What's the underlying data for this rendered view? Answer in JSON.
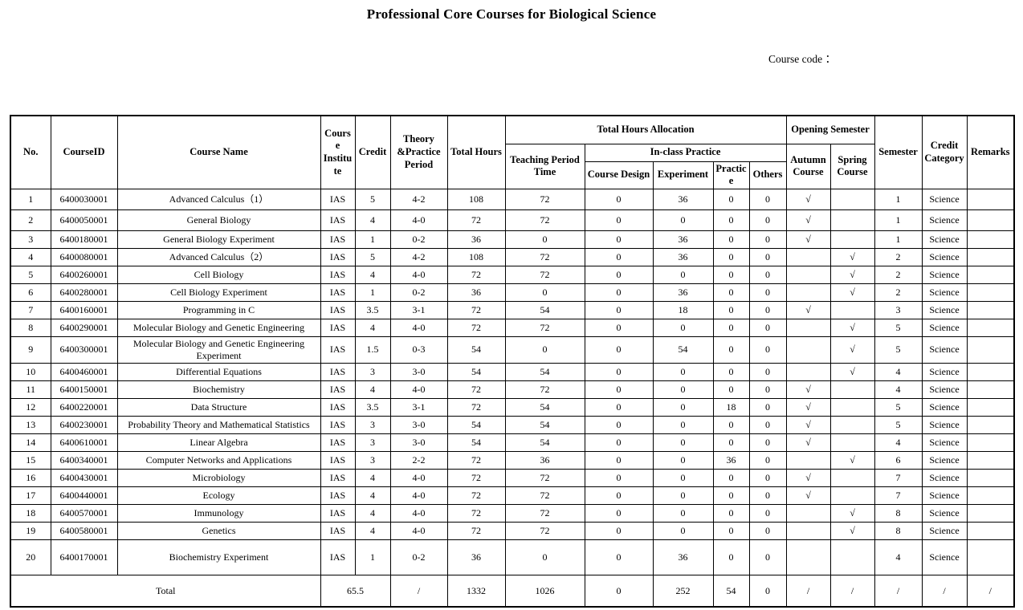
{
  "page": {
    "title": "Professional Core Courses for Biological Science",
    "course_code_label": "Course code ："
  },
  "table": {
    "headers": {
      "no": "No.",
      "course_id": "CourseID",
      "course_name": "Course Name",
      "course_institute": "Course Institute",
      "credit": "Credit",
      "theory_practice": "Theory &Practice Period",
      "total_hours": "Total Hours",
      "total_hours_allocation": "Total Hours Allocation",
      "teaching_period_time": "Teaching Period Time",
      "in_class_practice": "In-class Practice",
      "course_design": "Course Design",
      "experiment": "Experiment",
      "practice": "Practice",
      "others": "Others",
      "opening_semester": "Opening Semester",
      "autumn_course": "Autumn Course",
      "spring_course": "Spring Course",
      "semester": "Semester",
      "credit_category": "Credit Category",
      "remarks": "Remarks"
    },
    "rows": [
      {
        "no": "1",
        "course_id": "6400030001",
        "course_name": "Advanced Calculus（1）",
        "institute": "IAS",
        "credit": "5",
        "theory_practice": "4-2",
        "total_hours": "108",
        "teaching": "72",
        "course_design": "0",
        "experiment": "36",
        "practice": "0",
        "others": "0",
        "autumn": "√",
        "spring": "",
        "semester": "1",
        "category": "Science",
        "remarks": ""
      },
      {
        "no": "2",
        "course_id": "6400050001",
        "course_name": "General Biology",
        "institute": "IAS",
        "credit": "4",
        "theory_practice": "4-0",
        "total_hours": "72",
        "teaching": "72",
        "course_design": "0",
        "experiment": "0",
        "practice": "0",
        "others": "0",
        "autumn": "√",
        "spring": "",
        "semester": "1",
        "category": "Science",
        "remarks": ""
      },
      {
        "no": "3",
        "course_id": "6400180001",
        "course_name": "General Biology Experiment",
        "institute": "IAS",
        "credit": "1",
        "theory_practice": "0-2",
        "total_hours": "36",
        "teaching": "0",
        "course_design": "0",
        "experiment": "36",
        "practice": "0",
        "others": "0",
        "autumn": "√",
        "spring": "",
        "semester": "1",
        "category": "Science",
        "remarks": ""
      },
      {
        "no": "4",
        "course_id": "6400080001",
        "course_name": "Advanced Calculus（2）",
        "institute": "IAS",
        "credit": "5",
        "theory_practice": "4-2",
        "total_hours": "108",
        "teaching": "72",
        "course_design": "0",
        "experiment": "36",
        "practice": "0",
        "others": "0",
        "autumn": "",
        "spring": "√",
        "semester": "2",
        "category": "Science",
        "remarks": ""
      },
      {
        "no": "5",
        "course_id": "6400260001",
        "course_name": "Cell Biology",
        "institute": "IAS",
        "credit": "4",
        "theory_practice": "4-0",
        "total_hours": "72",
        "teaching": "72",
        "course_design": "0",
        "experiment": "0",
        "practice": "0",
        "others": "0",
        "autumn": "",
        "spring": "√",
        "semester": "2",
        "category": "Science",
        "remarks": ""
      },
      {
        "no": "6",
        "course_id": "6400280001",
        "course_name": "Cell Biology Experiment",
        "institute": "IAS",
        "credit": "1",
        "theory_practice": "0-2",
        "total_hours": "36",
        "teaching": "0",
        "course_design": "0",
        "experiment": "36",
        "practice": "0",
        "others": "0",
        "autumn": "",
        "spring": "√",
        "semester": "2",
        "category": "Science",
        "remarks": ""
      },
      {
        "no": "7",
        "course_id": "6400160001",
        "course_name": "Programming in C",
        "institute": "IAS",
        "credit": "3.5",
        "theory_practice": "3-1",
        "total_hours": "72",
        "teaching": "54",
        "course_design": "0",
        "experiment": "18",
        "practice": "0",
        "others": "0",
        "autumn": "√",
        "spring": "",
        "semester": "3",
        "category": "Science",
        "remarks": ""
      },
      {
        "no": "8",
        "course_id": "6400290001",
        "course_name": "Molecular Biology and Genetic Engineering",
        "institute": "IAS",
        "credit": "4",
        "theory_practice": "4-0",
        "total_hours": "72",
        "teaching": "72",
        "course_design": "0",
        "experiment": "0",
        "practice": "0",
        "others": "0",
        "autumn": "",
        "spring": "√",
        "semester": "5",
        "category": "Science",
        "remarks": ""
      },
      {
        "no": "9",
        "course_id": "6400300001",
        "course_name": "Molecular Biology and Genetic Engineering Experiment",
        "institute": "IAS",
        "credit": "1.5",
        "theory_practice": "0-3",
        "total_hours": "54",
        "teaching": "0",
        "course_design": "0",
        "experiment": "54",
        "practice": "0",
        "others": "0",
        "autumn": "",
        "spring": "√",
        "semester": "5",
        "category": "Science",
        "remarks": ""
      },
      {
        "no": "10",
        "course_id": "6400460001",
        "course_name": "Differential Equations",
        "institute": "IAS",
        "credit": "3",
        "theory_practice": "3-0",
        "total_hours": "54",
        "teaching": "54",
        "course_design": "0",
        "experiment": "0",
        "practice": "0",
        "others": "0",
        "autumn": "",
        "spring": "√",
        "semester": "4",
        "category": "Science",
        "remarks": ""
      },
      {
        "no": "11",
        "course_id": "6400150001",
        "course_name": "Biochemistry",
        "institute": "IAS",
        "credit": "4",
        "theory_practice": "4-0",
        "total_hours": "72",
        "teaching": "72",
        "course_design": "0",
        "experiment": "0",
        "practice": "0",
        "others": "0",
        "autumn": "√",
        "spring": "",
        "semester": "4",
        "category": "Science",
        "remarks": ""
      },
      {
        "no": "12",
        "course_id": "6400220001",
        "course_name": "Data Structure",
        "institute": "IAS",
        "credit": "3.5",
        "theory_practice": "3-1",
        "total_hours": "72",
        "teaching": "54",
        "course_design": "0",
        "experiment": "0",
        "practice": "18",
        "others": "0",
        "autumn": "√",
        "spring": "",
        "semester": "5",
        "category": "Science",
        "remarks": ""
      },
      {
        "no": "13",
        "course_id": "6400230001",
        "course_name": "Probability Theory and Mathematical Statistics",
        "institute": "IAS",
        "credit": "3",
        "theory_practice": "3-0",
        "total_hours": "54",
        "teaching": "54",
        "course_design": "0",
        "experiment": "0",
        "practice": "0",
        "others": "0",
        "autumn": "√",
        "spring": "",
        "semester": "5",
        "category": "Science",
        "remarks": ""
      },
      {
        "no": "14",
        "course_id": "6400610001",
        "course_name": "Linear Algebra",
        "institute": "IAS",
        "credit": "3",
        "theory_practice": "3-0",
        "total_hours": "54",
        "teaching": "54",
        "course_design": "0",
        "experiment": "0",
        "practice": "0",
        "others": "0",
        "autumn": "√",
        "spring": "",
        "semester": "4",
        "category": "Science",
        "remarks": ""
      },
      {
        "no": "15",
        "course_id": "6400340001",
        "course_name": "Computer Networks and Applications",
        "institute": "IAS",
        "credit": "3",
        "theory_practice": "2-2",
        "total_hours": "72",
        "teaching": "36",
        "course_design": "0",
        "experiment": "0",
        "practice": "36",
        "others": "0",
        "autumn": "",
        "spring": "√",
        "semester": "6",
        "category": "Science",
        "remarks": ""
      },
      {
        "no": "16",
        "course_id": "6400430001",
        "course_name": "Microbiology",
        "institute": "IAS",
        "credit": "4",
        "theory_practice": "4-0",
        "total_hours": "72",
        "teaching": "72",
        "course_design": "0",
        "experiment": "0",
        "practice": "0",
        "others": "0",
        "autumn": "√",
        "spring": "",
        "semester": "7",
        "category": "Science",
        "remarks": ""
      },
      {
        "no": "17",
        "course_id": "6400440001",
        "course_name": "Ecology",
        "institute": "IAS",
        "credit": "4",
        "theory_practice": "4-0",
        "total_hours": "72",
        "teaching": "72",
        "course_design": "0",
        "experiment": "0",
        "practice": "0",
        "others": "0",
        "autumn": "√",
        "spring": "",
        "semester": "7",
        "category": "Science",
        "remarks": ""
      },
      {
        "no": "18",
        "course_id": "6400570001",
        "course_name": "Immunology",
        "institute": "IAS",
        "credit": "4",
        "theory_practice": "4-0",
        "total_hours": "72",
        "teaching": "72",
        "course_design": "0",
        "experiment": "0",
        "practice": "0",
        "others": "0",
        "autumn": "",
        "spring": "√",
        "semester": "8",
        "category": "Science",
        "remarks": ""
      },
      {
        "no": "19",
        "course_id": "6400580001",
        "course_name": "Genetics",
        "institute": "IAS",
        "credit": "4",
        "theory_practice": "4-0",
        "total_hours": "72",
        "teaching": "72",
        "course_design": "0",
        "experiment": "0",
        "practice": "0",
        "others": "0",
        "autumn": "",
        "spring": "√",
        "semester": "8",
        "category": "Science",
        "remarks": ""
      },
      {
        "no": "20",
        "course_id": "6400170001",
        "course_name": "Biochemistry Experiment",
        "institute": "IAS",
        "credit": "1",
        "theory_practice": "0-2",
        "total_hours": "36",
        "teaching": "0",
        "course_design": "0",
        "experiment": "36",
        "practice": "0",
        "others": "0",
        "autumn": "",
        "spring": "",
        "semester": "4",
        "category": "Science",
        "remarks": ""
      }
    ],
    "total_row": {
      "label": "Total",
      "credit": "65.5",
      "theory_practice": "/",
      "total_hours": "1332",
      "teaching": "1026",
      "course_design": "0",
      "experiment": "252",
      "practice": "54",
      "others": "0",
      "autumn": "/",
      "spring": "/",
      "semester": "/",
      "category": "/",
      "remarks": "/"
    }
  }
}
